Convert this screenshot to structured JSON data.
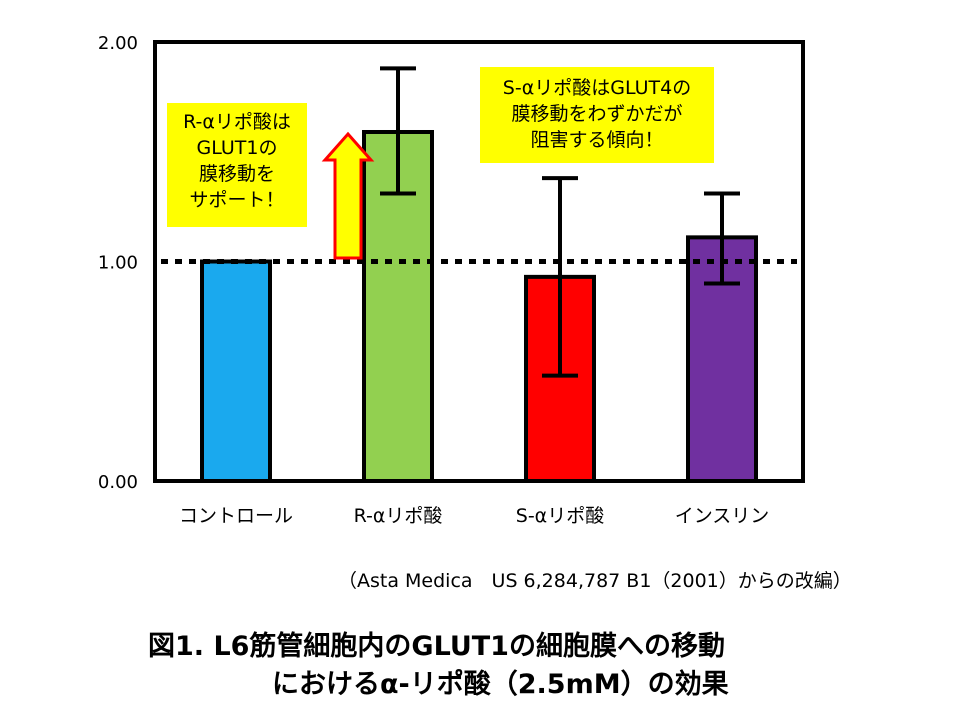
{
  "chart_data": {
    "type": "bar",
    "categories": [
      "コントロール",
      "R-αリポ酸",
      "S-αリポ酸",
      "インスリン"
    ],
    "values": [
      1.0,
      1.59,
      0.93,
      1.11
    ],
    "error_bars": [
      null,
      {
        "low": 1.31,
        "high": 1.88
      },
      {
        "low": 0.48,
        "high": 1.38
      },
      {
        "low": 0.9,
        "high": 1.31
      }
    ],
    "colors": [
      "#1aa9ee",
      "#92d050",
      "#ff0000",
      "#7030a0"
    ],
    "yticks": [
      "0.00",
      "1.00",
      "2.00"
    ],
    "ylim": [
      0,
      2
    ],
    "reference_line": 1.0,
    "grid": false,
    "arrow_color": "#ffff00"
  },
  "annotations": {
    "r_note": "R-αリポ酸は\nGLUT1の\n膜移動を\nサポート！",
    "s_note": "S-αリポ酸はGLUT4の\n膜移動をわずかだが\n阻害する傾向！"
  },
  "source": "（Asta Medica　US 6,284,787 B1（2001）からの改編）",
  "figure_title": {
    "line1": "図1. L6筋管細胞内のGLUT1の細胞膜への移動",
    "line2": "におけるα-リポ酸（2.5mM）の効果"
  }
}
